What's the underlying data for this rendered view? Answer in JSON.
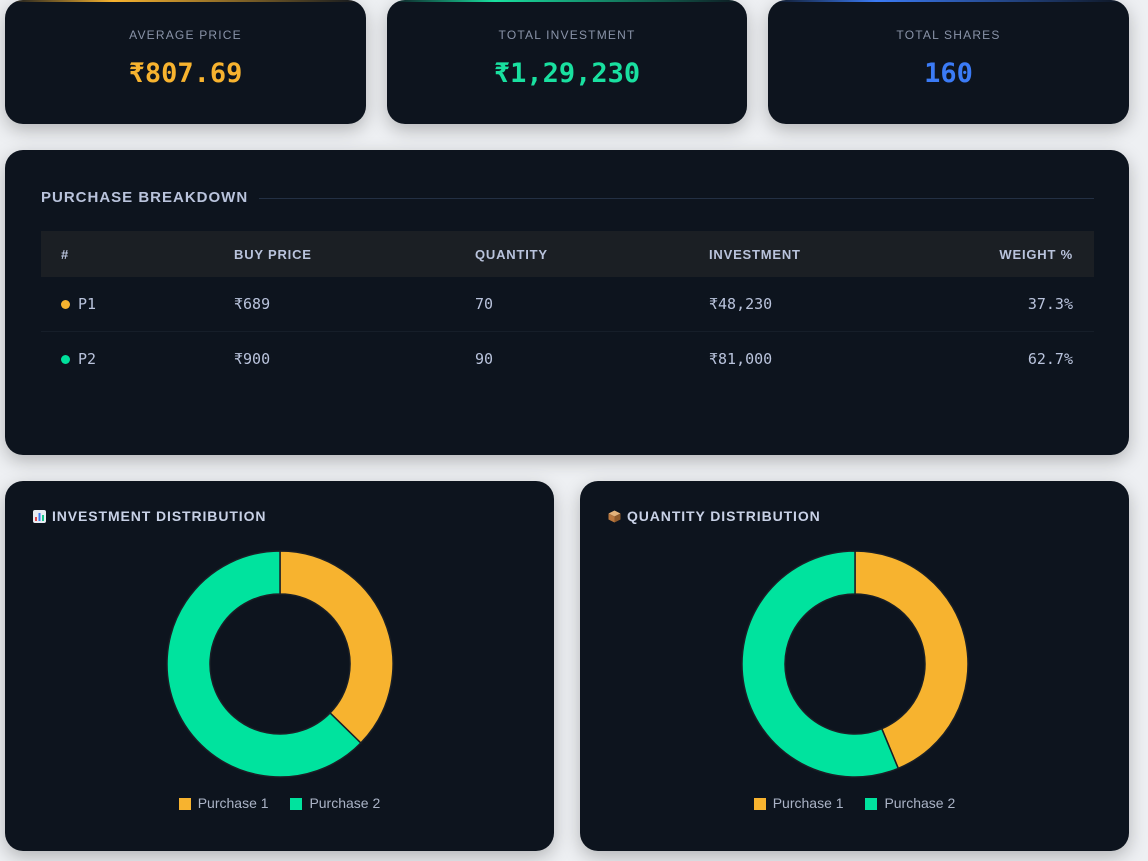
{
  "stats": [
    {
      "label": "AVERAGE PRICE",
      "value": "₹807.69",
      "color": "#f7b32f"
    },
    {
      "label": "TOTAL INVESTMENT",
      "value": "₹1,29,230",
      "color": "#19e0a0"
    },
    {
      "label": "TOTAL SHARES",
      "value": "160",
      "color": "#3b7bf6"
    }
  ],
  "breakdown": {
    "title": "PURCHASE BREAKDOWN",
    "headers": [
      "#",
      "BUY PRICE",
      "QUANTITY",
      "INVESTMENT",
      "WEIGHT %"
    ],
    "rows": [
      {
        "id": "P1",
        "dot_color": "#f7b32f",
        "buy_price": "₹689",
        "quantity": "70",
        "investment": "₹48,230",
        "weight": "37.3%"
      },
      {
        "id": "P2",
        "dot_color": "#00e09c",
        "buy_price": "₹900",
        "quantity": "90",
        "investment": "₹81,000",
        "weight": "62.7%"
      }
    ]
  },
  "colors": {
    "p1": "#f7b32f",
    "p2": "#00e39e",
    "card": "#0d141e"
  },
  "chart_data": [
    {
      "type": "pie",
      "title": "INVESTMENT DISTRIBUTION",
      "icon": "bar-chart-icon",
      "categories": [
        "Purchase 1",
        "Purchase 2"
      ],
      "values": [
        48230,
        81000
      ],
      "legend": "bottom"
    },
    {
      "type": "pie",
      "title": "QUANTITY DISTRIBUTION",
      "icon": "package-icon",
      "categories": [
        "Purchase 1",
        "Purchase 2"
      ],
      "values": [
        70,
        90
      ],
      "legend": "bottom"
    }
  ]
}
